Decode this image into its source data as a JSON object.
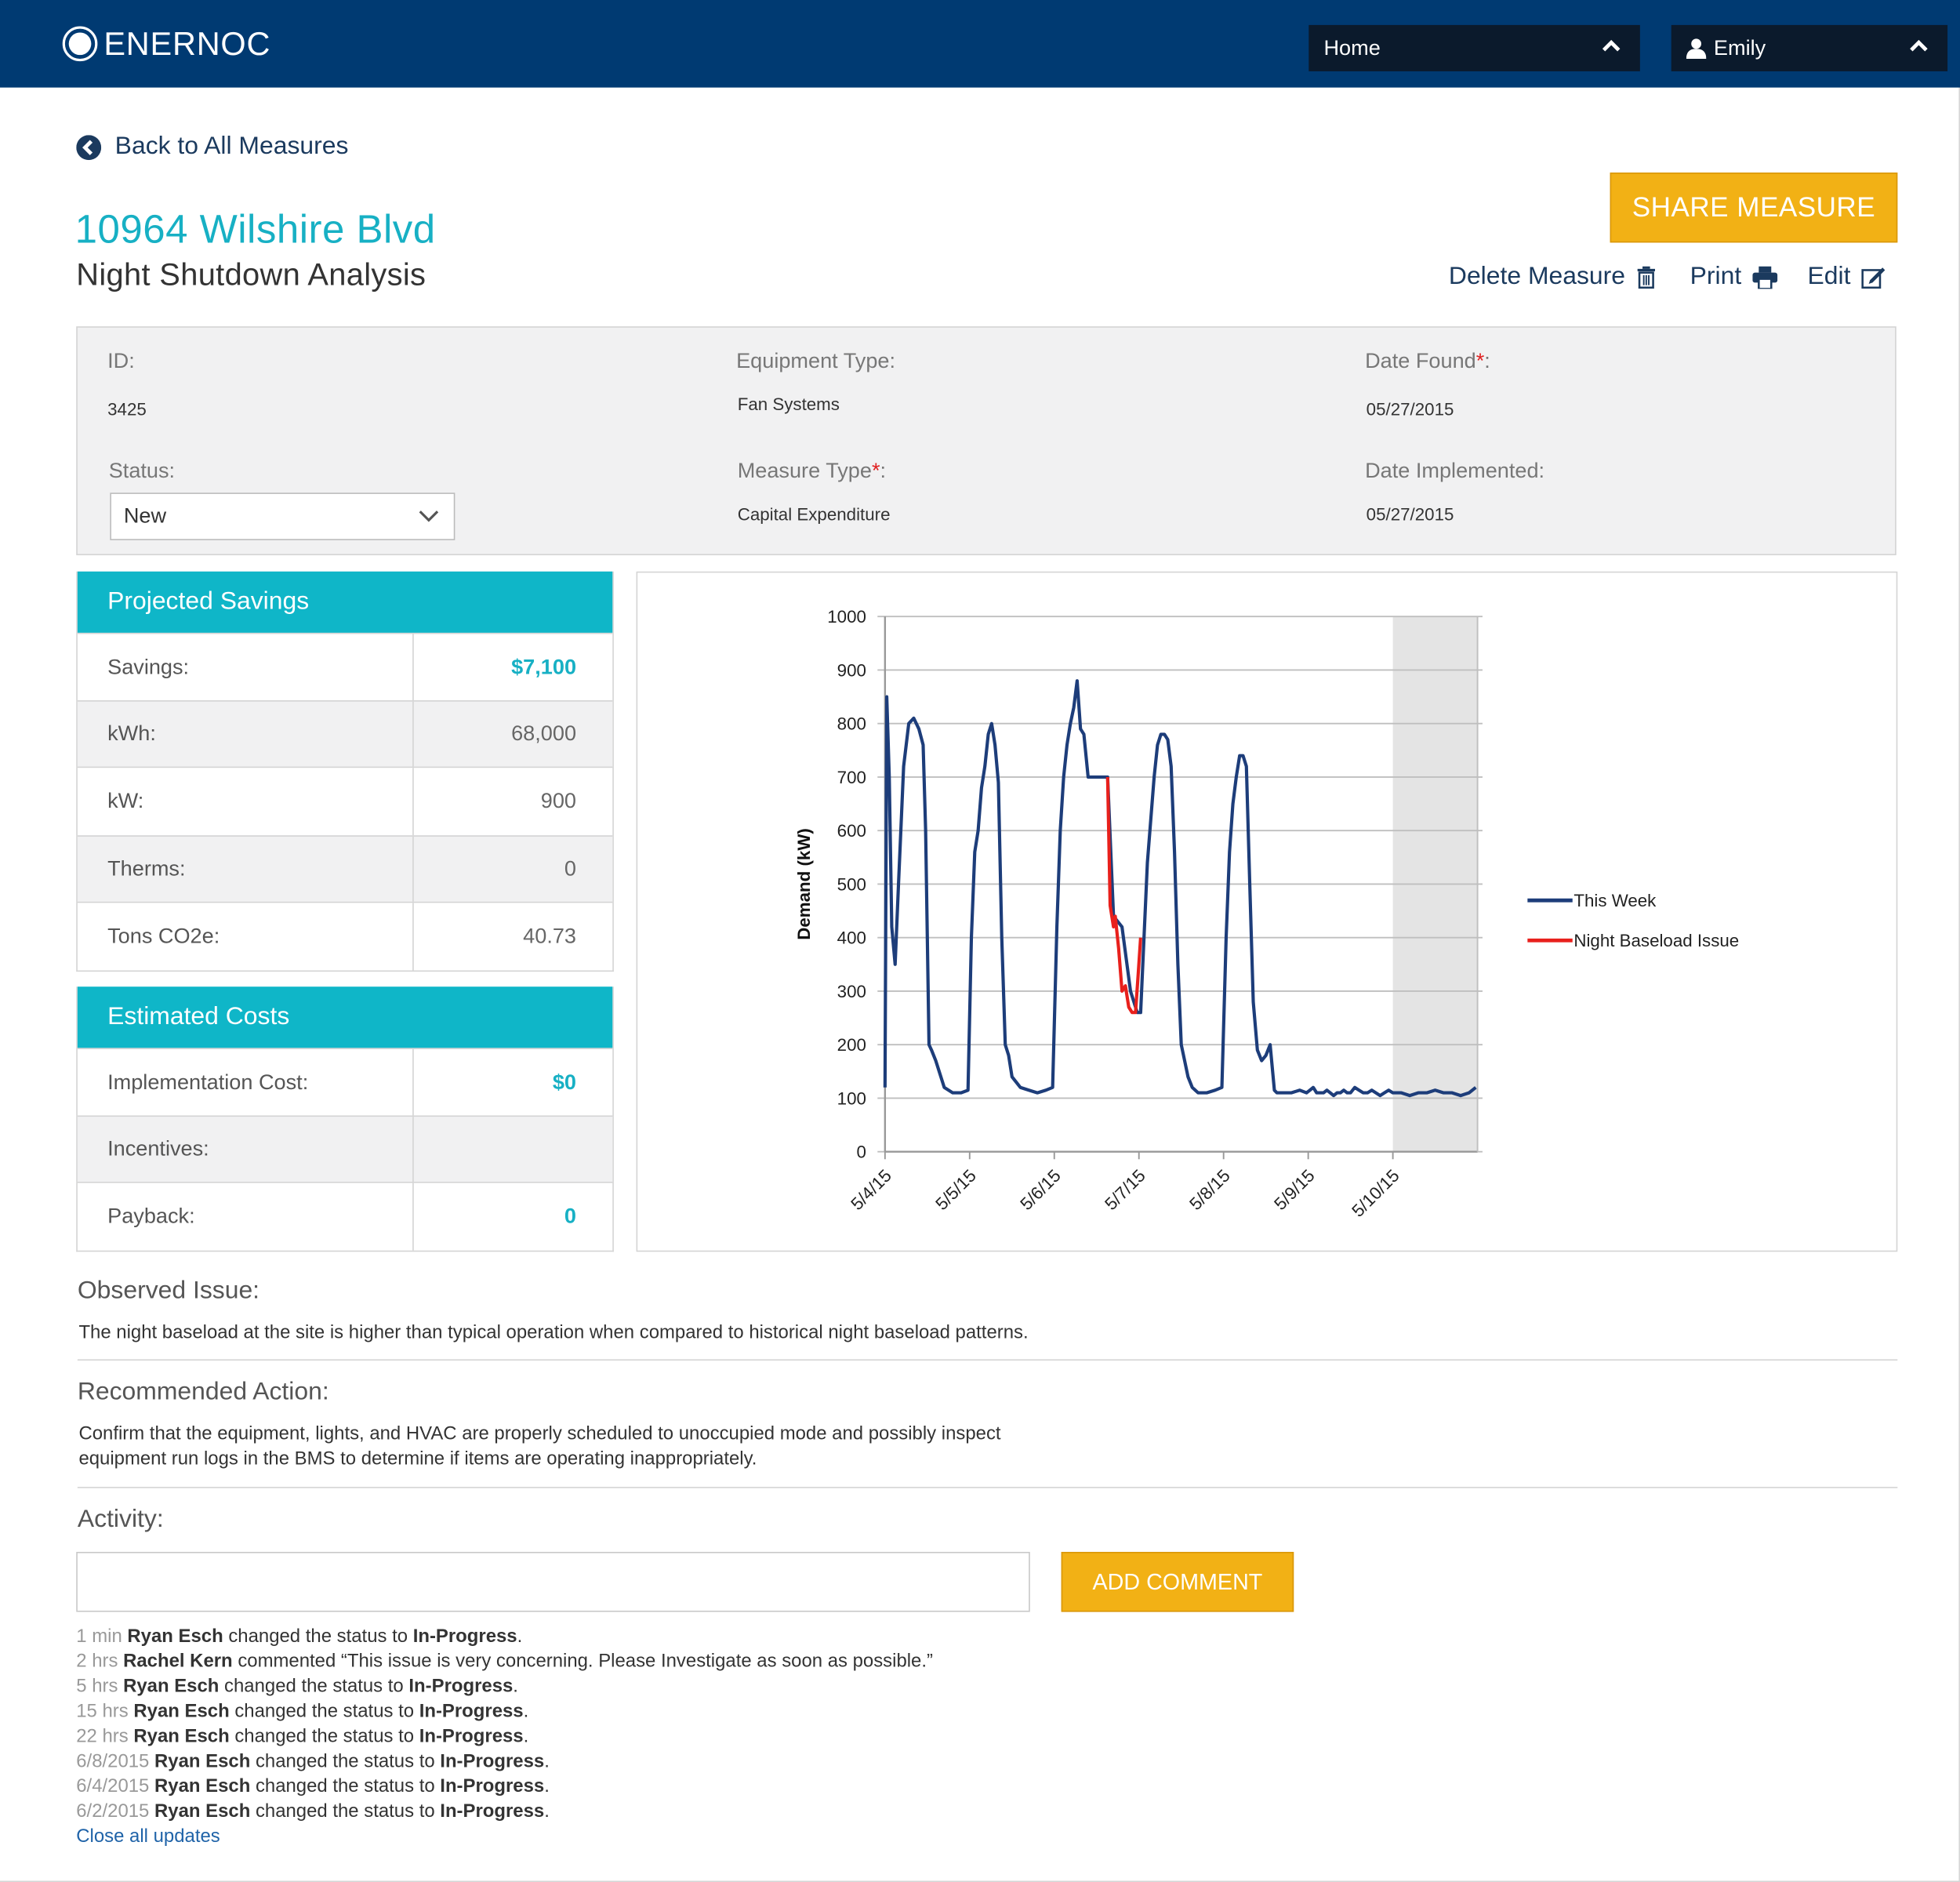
{
  "header": {
    "logo_text": "ENERNOC",
    "nav_home": "Home",
    "user_name": "Emily"
  },
  "back_link": "Back to All Measures",
  "measure": {
    "site": "10964 Wilshire Blvd",
    "name": "Night Shutdown Analysis"
  },
  "buttons": {
    "share": "SHARE MEASURE",
    "delete": "Delete Measure",
    "print": "Print",
    "edit": "Edit",
    "add_comment": "ADD COMMENT"
  },
  "info": {
    "id_label": "ID:",
    "id_value": "3425",
    "equipment_label": "Equipment Type:",
    "equipment_value": "Fan Systems",
    "date_found_label": "Date Found",
    "date_found_value": "05/27/2015",
    "status_label": "Status:",
    "status_value": "New",
    "measure_type_label": "Measure Type",
    "measure_type_value": "Capital Expenditure",
    "date_impl_label": "Date Implemented:",
    "date_impl_value": "05/27/2015",
    "required_mark": "*",
    "colon": ":"
  },
  "projected_savings": {
    "title": "Projected Savings",
    "rows": [
      {
        "label": "Savings:",
        "value": "$7,100"
      },
      {
        "label": "kWh:",
        "value": "68,000"
      },
      {
        "label": "kW:",
        "value": "900"
      },
      {
        "label": "Therms:",
        "value": "0"
      },
      {
        "label": "Tons CO2e:",
        "value": "40.73"
      }
    ]
  },
  "estimated_costs": {
    "title": "Estimated Costs",
    "rows": [
      {
        "label": "Implementation Cost:",
        "value": "$0"
      },
      {
        "label": "Incentives:",
        "value": ""
      },
      {
        "label": "Payback:",
        "value": "0"
      }
    ]
  },
  "chart_data": {
    "type": "line",
    "title": "",
    "xlabel": "",
    "ylabel": "Demand (kW)",
    "ylim": [
      0,
      1000
    ],
    "yticks": [
      "0",
      "100",
      "200",
      "300",
      "400",
      "500",
      "600",
      "700",
      "800",
      "900",
      "1000"
    ],
    "xlim": [
      0,
      7
    ],
    "xticks": [
      "5/4/15",
      "5/5/15",
      "5/6/15",
      "5/7/15",
      "5/8/15",
      "5/9/15",
      "5/10/15"
    ],
    "grid": true,
    "legend": "right",
    "shaded_region": [
      6,
      7
    ],
    "series": [
      {
        "name": "This Week",
        "color": "#1d3d7a",
        "x": [
          0.0,
          0.02,
          0.05,
          0.08,
          0.12,
          0.16,
          0.22,
          0.28,
          0.34,
          0.4,
          0.45,
          0.48,
          0.52,
          0.55,
          0.6,
          0.7,
          0.8,
          0.9,
          0.98,
          1.02,
          1.06,
          1.1,
          1.14,
          1.18,
          1.22,
          1.26,
          1.3,
          1.34,
          1.38,
          1.42,
          1.46,
          1.5,
          1.55,
          1.6,
          1.7,
          1.8,
          1.9,
          1.98,
          2.03,
          2.07,
          2.11,
          2.15,
          2.19,
          2.23,
          2.27,
          2.31,
          2.35,
          2.4,
          2.45,
          2.5,
          2.55,
          2.6,
          2.63,
          2.7,
          2.8,
          2.9,
          2.98,
          3.02,
          3.06,
          3.1,
          3.14,
          3.18,
          3.22,
          3.26,
          3.3,
          3.34,
          3.38,
          3.42,
          3.46,
          3.5,
          3.54,
          3.58,
          3.63,
          3.7,
          3.8,
          3.9,
          3.98,
          4.03,
          4.07,
          4.11,
          4.15,
          4.19,
          4.23,
          4.27,
          4.31,
          4.35,
          4.4,
          4.45,
          4.5,
          4.55,
          4.6,
          4.63,
          4.7,
          4.8,
          4.9,
          4.98,
          5.02,
          5.06,
          5.1,
          5.14,
          5.18,
          5.22,
          5.26,
          5.3,
          5.34,
          5.38,
          5.42,
          5.46,
          5.5,
          5.55,
          5.6,
          5.65,
          5.7,
          5.75,
          5.8,
          5.85,
          5.9,
          5.95,
          6.0,
          6.1,
          6.2,
          6.3,
          6.4,
          6.5,
          6.6,
          6.7,
          6.8,
          6.9,
          6.98
        ],
        "y": [
          120,
          850,
          700,
          420,
          350,
          500,
          720,
          800,
          810,
          790,
          760,
          600,
          200,
          190,
          170,
          120,
          110,
          110,
          115,
          400,
          560,
          600,
          680,
          720,
          780,
          800,
          760,
          690,
          400,
          200,
          180,
          140,
          130,
          120,
          115,
          110,
          115,
          120,
          420,
          600,
          700,
          760,
          800,
          830,
          880,
          790,
          780,
          700,
          700,
          700,
          700,
          700,
          700,
          440,
          420,
          300,
          260,
          260,
          400,
          540,
          620,
          700,
          760,
          780,
          780,
          770,
          720,
          560,
          350,
          200,
          170,
          140,
          120,
          110,
          110,
          115,
          120,
          400,
          560,
          650,
          700,
          740,
          740,
          720,
          500,
          280,
          190,
          170,
          180,
          200,
          115,
          110,
          110,
          110,
          115,
          110,
          115,
          120,
          110,
          110,
          110,
          115,
          110,
          105,
          110,
          110,
          115,
          110,
          110,
          120,
          115,
          110,
          110,
          115,
          110,
          105,
          110,
          115,
          110,
          110,
          105,
          110,
          110,
          115,
          110,
          110,
          105,
          110,
          120
        ]
      },
      {
        "name": "Night Baseload Issue",
        "color": "#e8201c",
        "x": [
          2.63,
          2.66,
          2.7,
          2.72,
          2.76,
          2.8,
          2.84,
          2.88,
          2.92,
          2.96,
          2.99,
          3.02
        ],
        "y": [
          700,
          460,
          420,
          440,
          380,
          300,
          310,
          270,
          260,
          260,
          330,
          400
        ]
      }
    ]
  },
  "observed_issue": {
    "title": "Observed Issue:",
    "text": "The night baseload at the site is higher than typical operation when compared to historical night baseload patterns."
  },
  "recommended_action": {
    "title": "Recommended Action:",
    "line1": "Confirm that the equipment, lights, and HVAC are properly scheduled to unoccupied mode and possibly inspect",
    "line2": "equipment run logs in the BMS to determine if items are operating inappropriately."
  },
  "activity": {
    "title": "Activity:",
    "comment_placeholder": "",
    "items": [
      {
        "time": "1 min",
        "who": "Ryan Esch",
        "action": " changed the status to ",
        "target": "In-Progress",
        "end": "."
      },
      {
        "time": "2 hrs",
        "who": "Rachel Kern",
        "action": " commented “This issue is very concerning.  Please Investigate as soon as possible.”",
        "target": "",
        "end": ""
      },
      {
        "time": "5 hrs",
        "who": "Ryan Esch",
        "action": " changed the status to ",
        "target": "In-Progress",
        "end": "."
      },
      {
        "time": "15 hrs",
        "who": "Ryan Esch",
        "action": " changed the status to ",
        "target": "In-Progress",
        "end": "."
      },
      {
        "time": "22 hrs",
        "who": "Ryan Esch",
        "action": " changed the status to ",
        "target": "In-Progress",
        "end": "."
      },
      {
        "time": "6/8/2015",
        "who": "Ryan Esch",
        "action": " changed the status to ",
        "target": "In-Progress",
        "end": "."
      },
      {
        "time": "6/4/2015",
        "who": "Ryan Esch",
        "action": " changed the status to ",
        "target": "In-Progress",
        "end": "."
      },
      {
        "time": "6/2/2015",
        "who": "Ryan Esch",
        "action": " changed the status to ",
        "target": "In-Progress",
        "end": "."
      }
    ],
    "close_link": "Close all updates"
  },
  "colors": {
    "header_bg": "#003a72",
    "accent_teal": "#17b0c4",
    "button_yellow": "#f2b115",
    "series_blue": "#1d3d7a",
    "series_red": "#e8201c"
  }
}
